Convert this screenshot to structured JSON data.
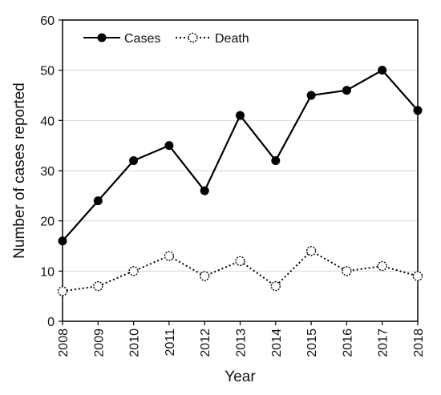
{
  "chart_data": {
    "type": "line",
    "x": [
      2008,
      2009,
      2010,
      2011,
      2012,
      2013,
      2014,
      2015,
      2016,
      2017,
      2018
    ],
    "series": [
      {
        "name": "Cases",
        "values": [
          16,
          24,
          32,
          35,
          26,
          41,
          32,
          45,
          46,
          50,
          42
        ],
        "line_style": "solid",
        "marker": "filled-circle"
      },
      {
        "name": "Death",
        "values": [
          6,
          7,
          10,
          13,
          9,
          12,
          7,
          14,
          10,
          11,
          9
        ],
        "line_style": "dotted",
        "marker": "open-circle"
      }
    ],
    "xlabel": "Year",
    "ylabel": "Number of cases reported",
    "ylim": [
      0,
      60
    ],
    "yticks": [
      0,
      10,
      20,
      30,
      40,
      50,
      60
    ],
    "grid": "horizontal",
    "legend_position": "top-left"
  }
}
